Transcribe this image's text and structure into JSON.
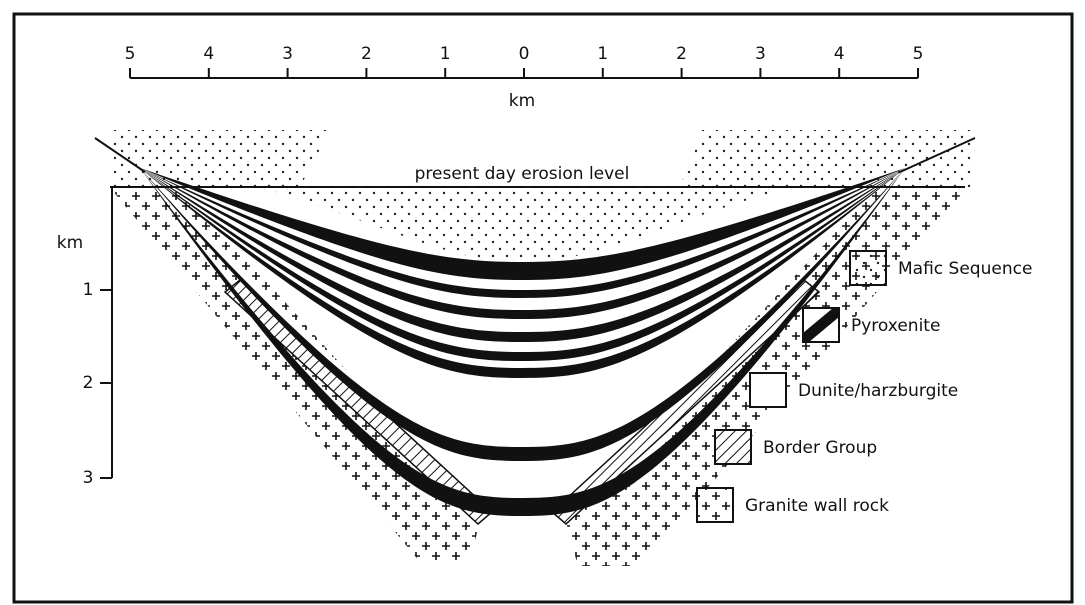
{
  "scale": {
    "ticks": [
      "5",
      "4",
      "3",
      "2",
      "1",
      "0",
      "1",
      "2",
      "3",
      "4",
      "5"
    ],
    "unit": "km"
  },
  "annotation": "present day erosion level",
  "depth_axis": {
    "unit": "km",
    "ticks": [
      "1",
      "2",
      "3"
    ]
  },
  "legend": {
    "items": [
      {
        "label": "Mafic Sequence"
      },
      {
        "label": "Pyroxenite"
      },
      {
        "label": "Dunite/harzburgite"
      },
      {
        "label": "Border Group"
      },
      {
        "label": "Granite wall rock"
      }
    ]
  }
}
